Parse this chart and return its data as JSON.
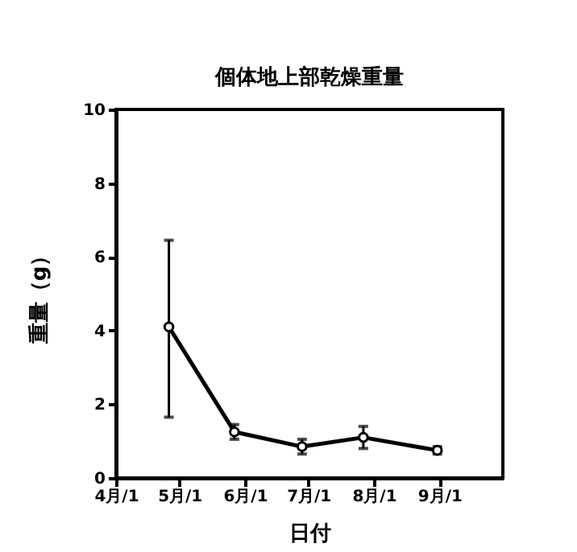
{
  "chart_data": {
    "type": "line",
    "title": "個体地上部乾燥重量",
    "xlabel": "日付",
    "ylabel": "重量（g）",
    "x": [
      "--04-26",
      "--05-27",
      "--06-28",
      "--07-27",
      "--08-31"
    ],
    "series": [
      {
        "color": "#000000",
        "values": [
          4.1,
          1.25,
          0.85,
          1.1,
          0.75
        ],
        "errors": [
          [
            1.65,
            6.45
          ],
          0.2,
          0.2,
          0.3,
          0.1
        ]
      }
    ],
    "xlim": [
      "--04-01",
      "--10-01"
    ],
    "xticks": [
      {
        "value": "--04-01",
        "label": "4月/1"
      },
      {
        "value": "--05-01",
        "label": "5月/1"
      },
      {
        "value": "--06-01",
        "label": "6月/1"
      },
      {
        "value": "--07-01",
        "label": "7月/1"
      },
      {
        "value": "--08-01",
        "label": "8月/1"
      },
      {
        "value": "--09-01",
        "label": "9月/1"
      }
    ],
    "ylim": [
      0,
      10
    ],
    "yticks": [
      0,
      2,
      4,
      6,
      8,
      10
    ],
    "marker": "circle",
    "line_style": "solid"
  }
}
